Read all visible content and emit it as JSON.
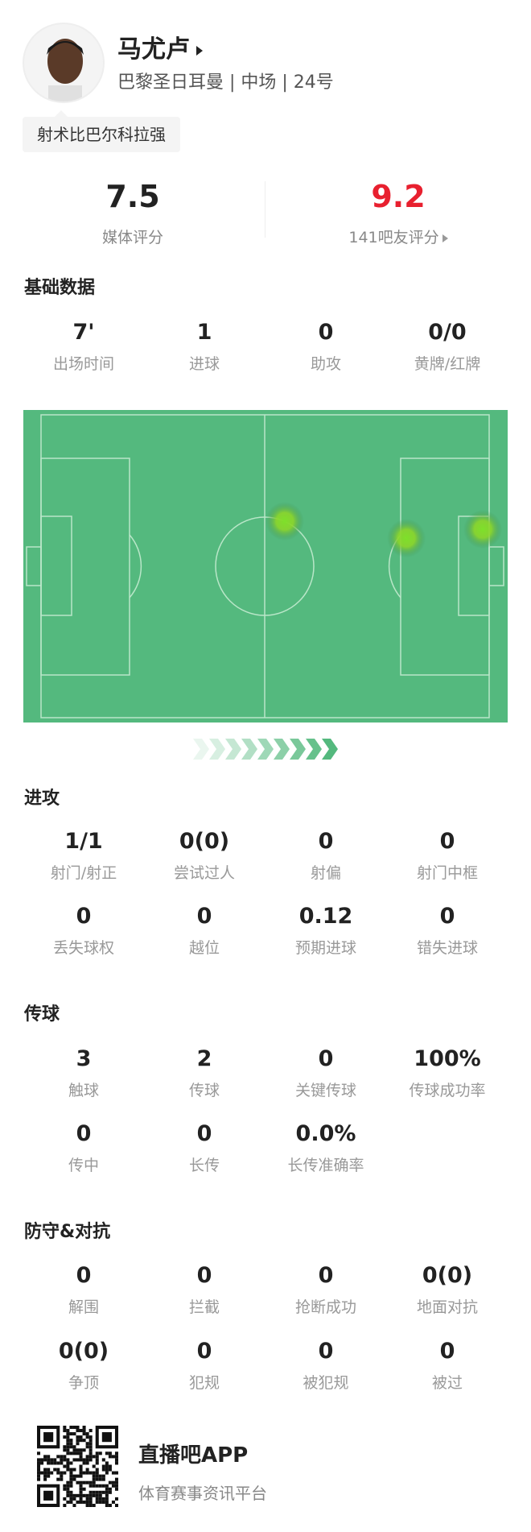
{
  "player": {
    "name": "马尤卢",
    "info": "巴黎圣日耳曼 | 中场 | 24号",
    "tag": "射术比巴尔科拉强"
  },
  "ratings": {
    "media": {
      "value": "7.5",
      "label": "媒体评分"
    },
    "fans": {
      "value": "9.2",
      "label": "141吧友评分",
      "color": "#e8202f"
    }
  },
  "sections": [
    {
      "title": "基础数据",
      "stats": [
        {
          "value": "7'",
          "label": "出场时间"
        },
        {
          "value": "1",
          "label": "进球"
        },
        {
          "value": "0",
          "label": "助攻"
        },
        {
          "value": "0/0",
          "label": "黄牌/红牌"
        }
      ]
    },
    {
      "title": "进攻",
      "stats": [
        {
          "value": "1/1",
          "label": "射门/射正"
        },
        {
          "value": "0(0)",
          "label": "尝试过人"
        },
        {
          "value": "0",
          "label": "射偏"
        },
        {
          "value": "0",
          "label": "射门中框"
        },
        {
          "value": "0",
          "label": "丢失球权"
        },
        {
          "value": "0",
          "label": "越位"
        },
        {
          "value": "0.12",
          "label": "预期进球"
        },
        {
          "value": "0",
          "label": "错失进球"
        }
      ]
    },
    {
      "title": "传球",
      "stats": [
        {
          "value": "3",
          "label": "触球"
        },
        {
          "value": "2",
          "label": "传球"
        },
        {
          "value": "0",
          "label": "关键传球"
        },
        {
          "value": "100%",
          "label": "传球成功率"
        },
        {
          "value": "0",
          "label": "传中"
        },
        {
          "value": "0",
          "label": "长传"
        },
        {
          "value": "0.0%",
          "label": "长传准确率"
        }
      ]
    },
    {
      "title": "防守&对抗",
      "stats": [
        {
          "value": "0",
          "label": "解围"
        },
        {
          "value": "0",
          "label": "拦截"
        },
        {
          "value": "0",
          "label": "抢断成功"
        },
        {
          "value": "0(0)",
          "label": "地面对抗"
        },
        {
          "value": "0(0)",
          "label": "争顶"
        },
        {
          "value": "0",
          "label": "犯规"
        },
        {
          "value": "0",
          "label": "被犯规"
        },
        {
          "value": "0",
          "label": "被过"
        }
      ]
    }
  ],
  "heatmap": {
    "pitch_color": "#54b97e",
    "spot_color": "#7ee02a",
    "pitch_size_m": [
      105,
      68
    ],
    "touches_m": [
      [
        57.1,
        23.9
      ],
      [
        85.6,
        27.7
      ],
      [
        103.5,
        25.7
      ]
    ]
  },
  "footer": {
    "app": "直播吧APP",
    "slogan": "体育赛事资讯平台"
  }
}
